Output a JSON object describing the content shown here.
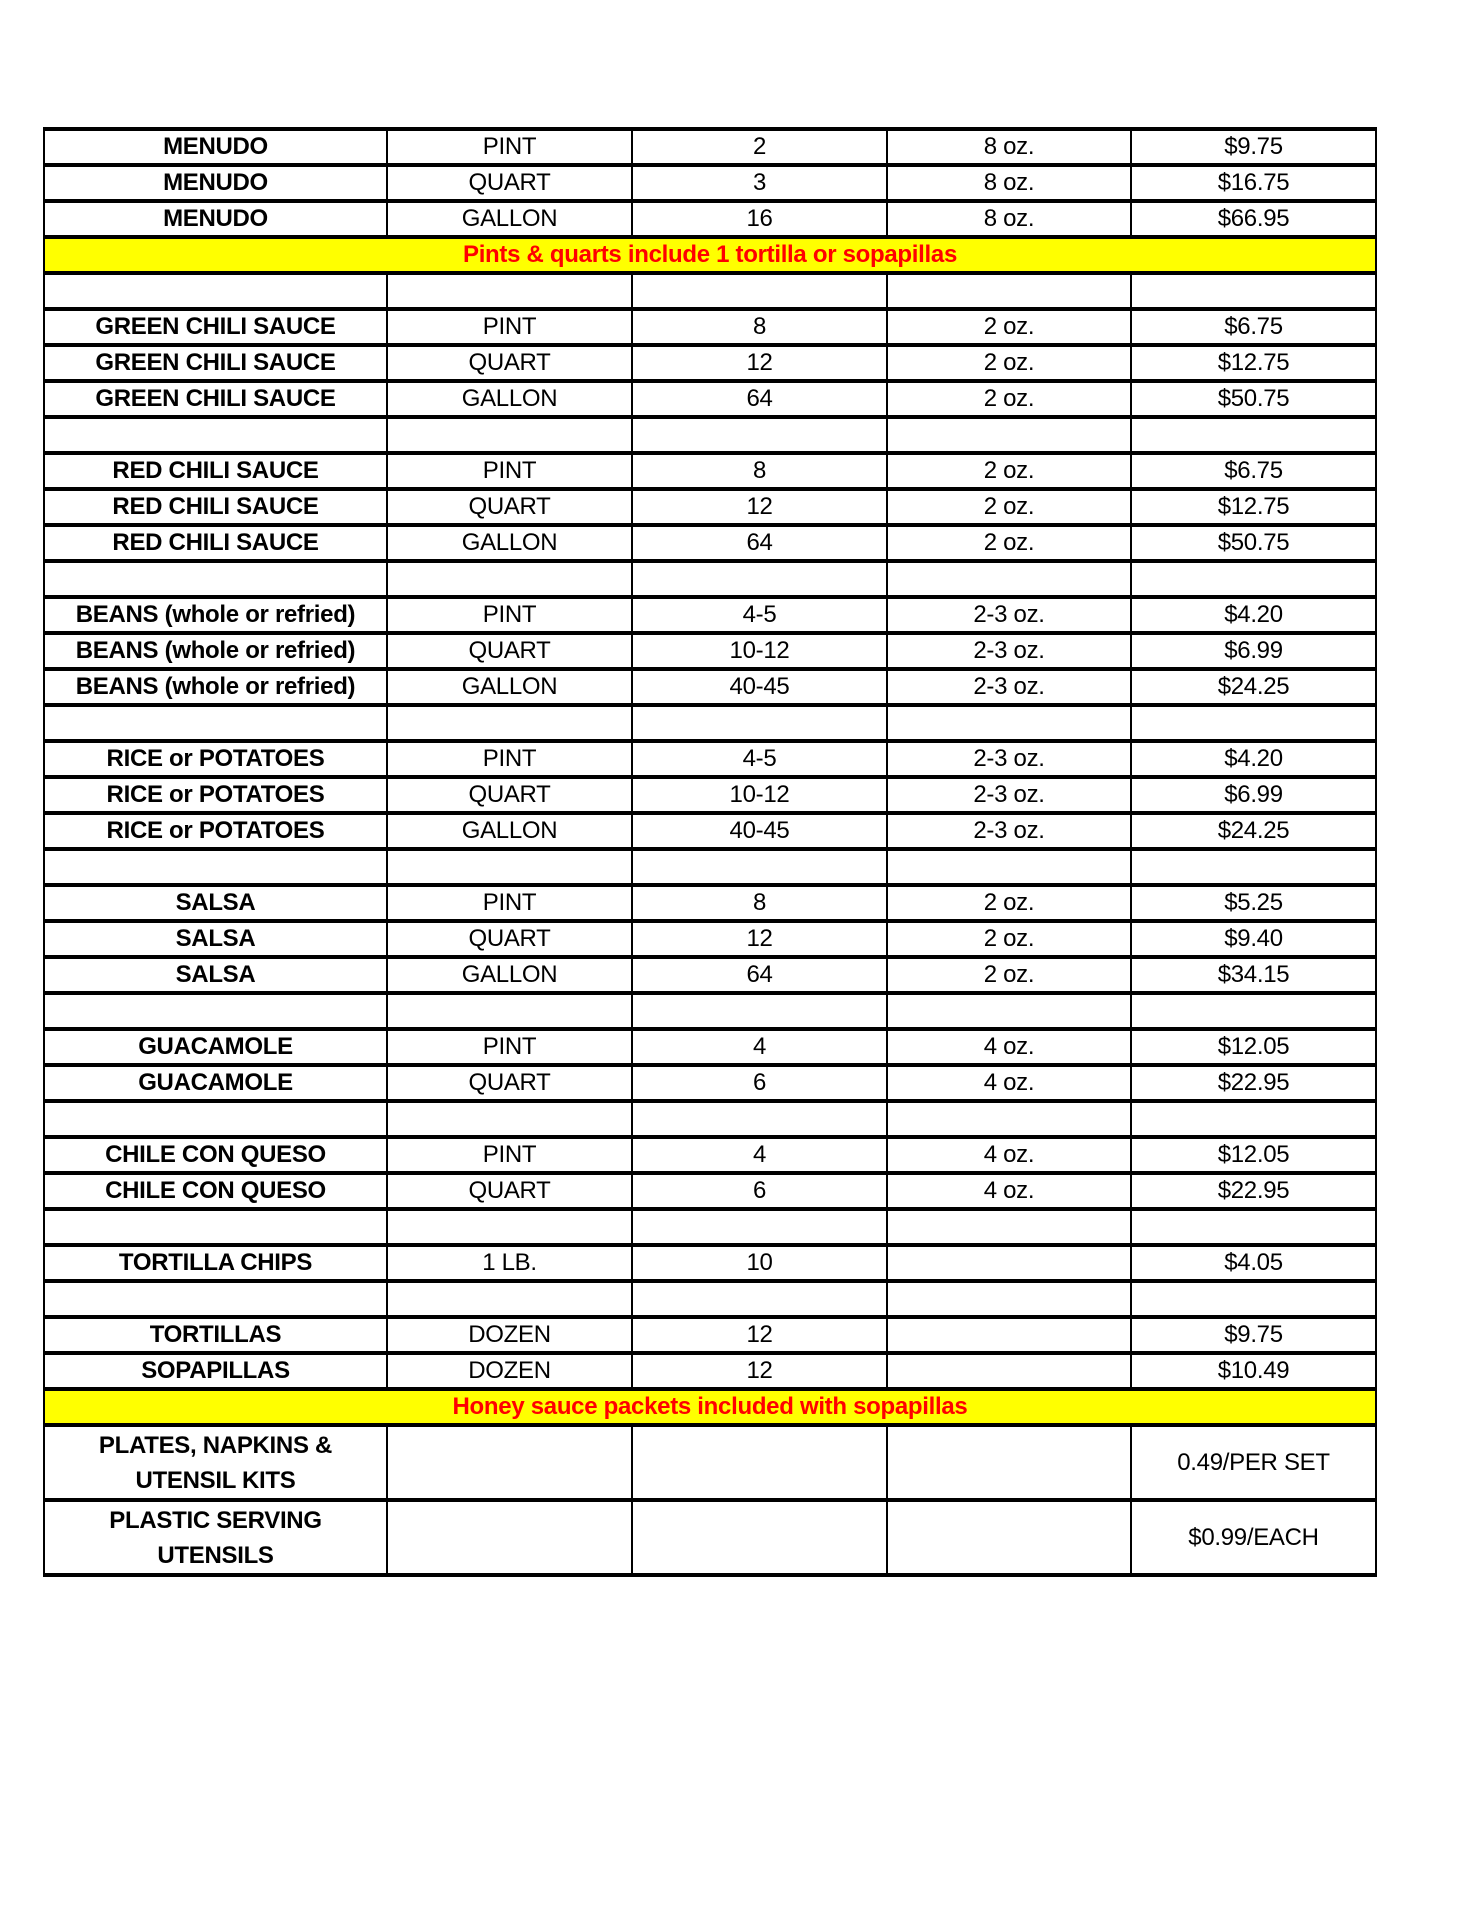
{
  "colors": {
    "page_background": "#ffffff",
    "band_background": "#ffff00",
    "band_text": "#ff0000",
    "table_border": "#000000",
    "table_text": "#000000"
  },
  "table": {
    "rows": [
      {
        "type": "item",
        "cells": [
          "MENUDO",
          "PINT",
          "2",
          "8 oz.",
          "$9.75"
        ]
      },
      {
        "type": "item",
        "cells": [
          "MENUDO",
          "QUART",
          "3",
          "8 oz.",
          "$16.75"
        ]
      },
      {
        "type": "item",
        "cells": [
          "MENUDO",
          "GALLON",
          "16",
          "8 oz.",
          "$66.95"
        ]
      },
      {
        "type": "band",
        "text": "Pints & quarts include 1 tortilla or sopapillas"
      },
      {
        "type": "spacer"
      },
      {
        "type": "item",
        "cells": [
          "GREEN CHILI SAUCE",
          "PINT",
          "8",
          "2 oz.",
          "$6.75"
        ]
      },
      {
        "type": "item",
        "cells": [
          "GREEN CHILI SAUCE",
          "QUART",
          "12",
          "2 oz.",
          "$12.75"
        ]
      },
      {
        "type": "item",
        "cells": [
          "GREEN CHILI SAUCE",
          "GALLON",
          "64",
          "2 oz.",
          "$50.75"
        ]
      },
      {
        "type": "spacer"
      },
      {
        "type": "item",
        "cells": [
          "RED CHILI SAUCE",
          "PINT",
          "8",
          "2 oz.",
          "$6.75"
        ]
      },
      {
        "type": "item",
        "cells": [
          "RED CHILI SAUCE",
          "QUART",
          "12",
          "2 oz.",
          "$12.75"
        ]
      },
      {
        "type": "item",
        "cells": [
          "RED CHILI SAUCE",
          "GALLON",
          "64",
          "2 oz.",
          "$50.75"
        ]
      },
      {
        "type": "spacer"
      },
      {
        "type": "item",
        "cells": [
          "BEANS (whole or refried)",
          "PINT",
          "4-5",
          "2-3 oz.",
          "$4.20"
        ]
      },
      {
        "type": "item",
        "cells": [
          "BEANS (whole or refried)",
          "QUART",
          "10-12",
          "2-3 oz.",
          "$6.99"
        ]
      },
      {
        "type": "item",
        "cells": [
          "BEANS (whole or refried)",
          "GALLON",
          "40-45",
          "2-3 oz.",
          "$24.25"
        ]
      },
      {
        "type": "spacer"
      },
      {
        "type": "item",
        "cells": [
          "RICE or POTATOES",
          "PINT",
          "4-5",
          "2-3 oz.",
          "$4.20"
        ]
      },
      {
        "type": "item",
        "cells": [
          "RICE or POTATOES",
          "QUART",
          "10-12",
          "2-3 oz.",
          "$6.99"
        ]
      },
      {
        "type": "item",
        "cells": [
          "RICE or POTATOES",
          "GALLON",
          "40-45",
          "2-3 oz.",
          "$24.25"
        ]
      },
      {
        "type": "spacer"
      },
      {
        "type": "item",
        "cells": [
          "SALSA",
          "PINT",
          "8",
          "2 oz.",
          "$5.25"
        ]
      },
      {
        "type": "item",
        "cells": [
          "SALSA",
          "QUART",
          "12",
          "2 oz.",
          "$9.40"
        ]
      },
      {
        "type": "item",
        "cells": [
          "SALSA",
          "GALLON",
          "64",
          "2 oz.",
          "$34.15"
        ]
      },
      {
        "type": "spacer"
      },
      {
        "type": "item",
        "cells": [
          "GUACAMOLE",
          "PINT",
          "4",
          "4 oz.",
          "$12.05"
        ]
      },
      {
        "type": "item",
        "cells": [
          "GUACAMOLE",
          "QUART",
          "6",
          "4 oz.",
          "$22.95"
        ]
      },
      {
        "type": "spacer"
      },
      {
        "type": "item",
        "cells": [
          "CHILE CON QUESO",
          "PINT",
          "4",
          "4 oz.",
          "$12.05"
        ]
      },
      {
        "type": "item",
        "cells": [
          "CHILE CON QUESO",
          "QUART",
          "6",
          "4 oz.",
          "$22.95"
        ]
      },
      {
        "type": "spacer"
      },
      {
        "type": "item",
        "cells": [
          "TORTILLA CHIPS",
          "1 LB.",
          "10",
          "",
          "$4.05"
        ]
      },
      {
        "type": "spacer"
      },
      {
        "type": "item",
        "cells": [
          "TORTILLAS",
          "DOZEN",
          "12",
          "",
          "$9.75"
        ]
      },
      {
        "type": "item",
        "cells": [
          "SOPAPILLAS",
          "DOZEN",
          "12",
          "",
          "$10.49"
        ]
      },
      {
        "type": "band",
        "text": "Honey sauce packets included with sopapillas"
      },
      {
        "type": "tall",
        "name_lines": [
          "PLATES, NAPKINS &",
          "UTENSIL KITS"
        ],
        "price": "0.49/PER SET"
      },
      {
        "type": "tall",
        "name_lines": [
          "PLASTIC SERVING",
          "UTENSILS"
        ],
        "price": "$0.99/EACH"
      }
    ]
  }
}
